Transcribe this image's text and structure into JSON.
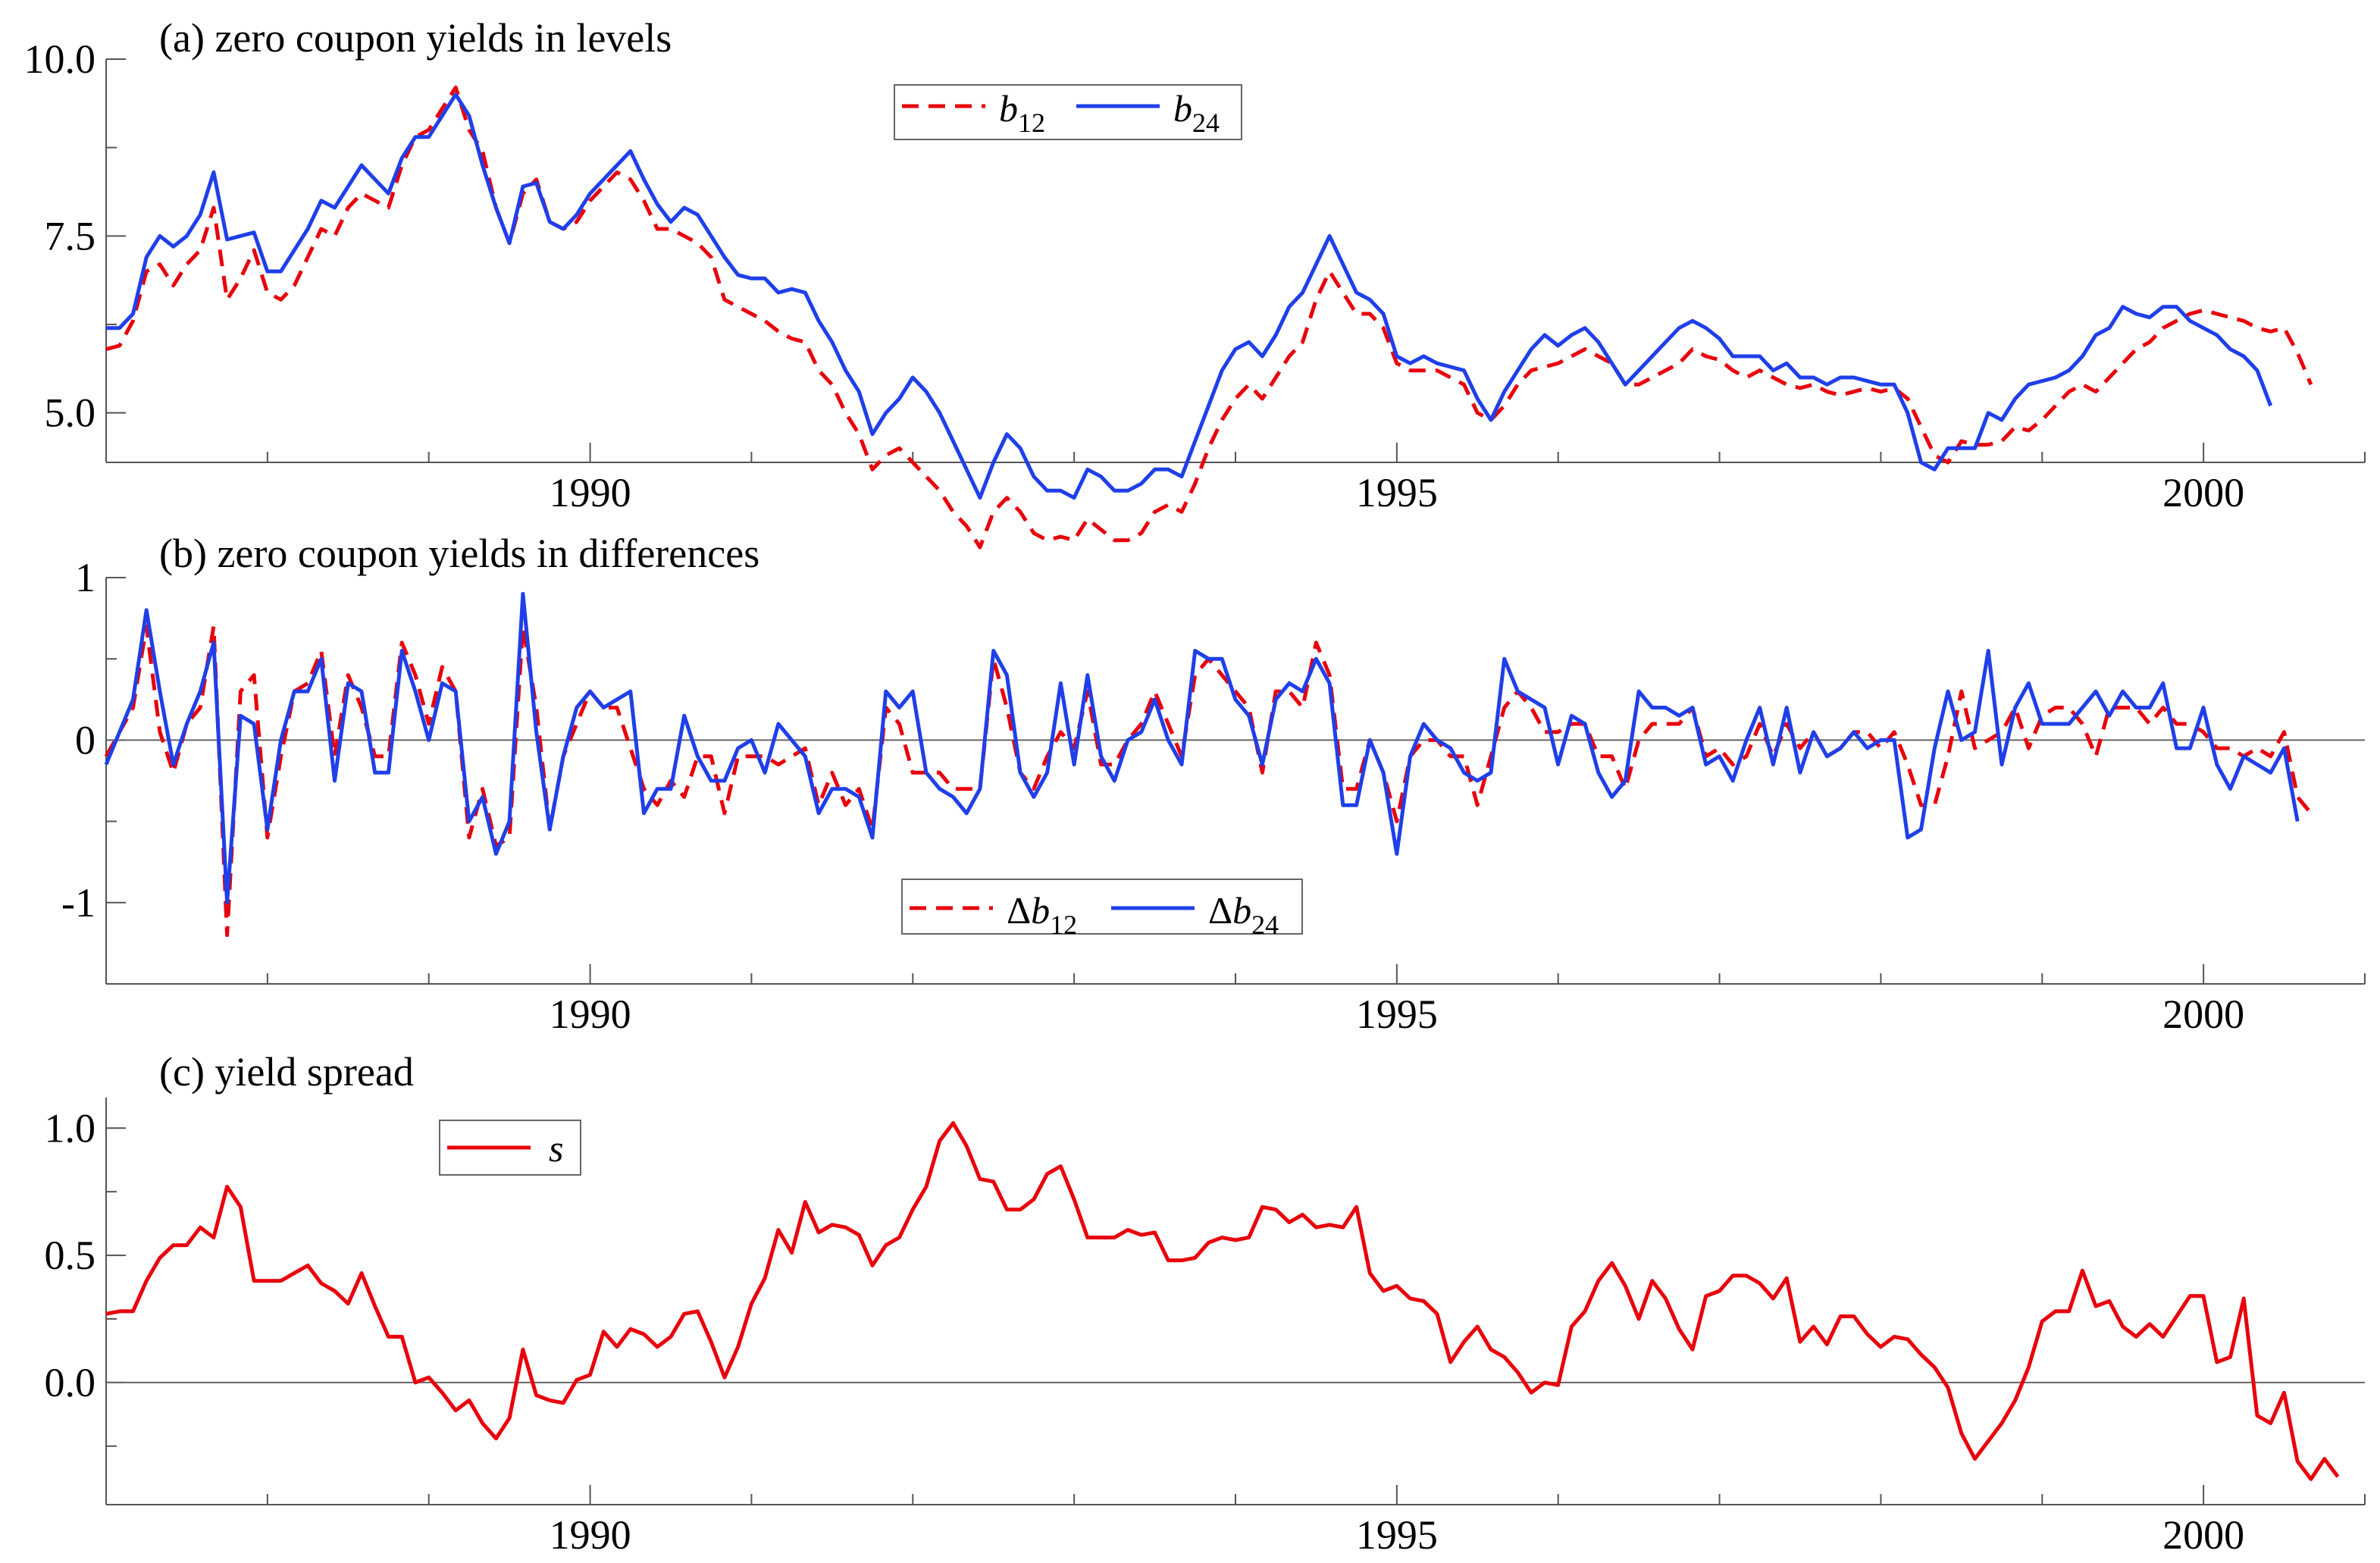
{
  "chart_data": [
    {
      "type": "line",
      "panel": "a",
      "title": "(a) zero coupon yields in levels",
      "x_start": 1987.0,
      "x_step": 0.08333,
      "xlim": [
        1987.0,
        2001.0
      ],
      "ylim": [
        4.3,
        10.0
      ],
      "yticks": [
        5.0,
        7.5,
        10.0
      ],
      "ytick_labels": [
        "5.0",
        "7.5",
        "10.0"
      ],
      "xticks": [
        1990,
        1995,
        2000
      ],
      "xtick_labels": [
        "1990",
        "1995",
        "2000"
      ],
      "zero_line": false,
      "legend_position": "top-center",
      "series": [
        {
          "name": "b12",
          "legend_main": "b",
          "legend_sub": "12",
          "color": "#e8000b",
          "dash": "dashed",
          "values": [
            5.9,
            5.95,
            6.3,
            7.0,
            7.1,
            6.8,
            7.1,
            7.3,
            7.9,
            6.6,
            6.9,
            7.3,
            6.7,
            6.6,
            6.8,
            7.2,
            7.6,
            7.5,
            7.9,
            8.1,
            8.0,
            7.9,
            8.5,
            8.9,
            9.0,
            9.3,
            9.6,
            9.0,
            8.7,
            7.9,
            7.4,
            8.1,
            8.3,
            7.7,
            7.6,
            7.7,
            8.0,
            8.2,
            8.4,
            8.3,
            8.0,
            7.6,
            7.6,
            7.5,
            7.4,
            7.2,
            6.6,
            6.5,
            6.4,
            6.3,
            6.15,
            6.05,
            6.0,
            5.6,
            5.4,
            5.0,
            4.7,
            4.2,
            4.4,
            4.5,
            4.3,
            4.1,
            3.9,
            3.6,
            3.4,
            3.1,
            3.6,
            3.8,
            3.6,
            3.3,
            3.2,
            3.25,
            3.2,
            3.5,
            3.35,
            3.2,
            3.2,
            3.3,
            3.6,
            3.7,
            3.6,
            4.0,
            4.5,
            4.9,
            5.2,
            5.4,
            5.2,
            5.5,
            5.8,
            6.0,
            6.6,
            7.0,
            6.7,
            6.4,
            6.4,
            6.2,
            5.7,
            5.6,
            5.6,
            5.6,
            5.5,
            5.4,
            5.0,
            4.9,
            5.1,
            5.4,
            5.6,
            5.65,
            5.7,
            5.8,
            5.9,
            5.8,
            5.7,
            5.4,
            5.4,
            5.5,
            5.6,
            5.7,
            5.9,
            5.8,
            5.75,
            5.6,
            5.5,
            5.6,
            5.5,
            5.4,
            5.35,
            5.4,
            5.3,
            5.25,
            5.3,
            5.35,
            5.3,
            5.35,
            5.2,
            4.8,
            4.4,
            4.3,
            4.6,
            4.55,
            4.55,
            4.6,
            4.8,
            4.75,
            4.9,
            5.1,
            5.3,
            5.4,
            5.3,
            5.5,
            5.7,
            5.9,
            6.0,
            6.2,
            6.3,
            6.4,
            6.45,
            6.4,
            6.35,
            6.3,
            6.2,
            6.15,
            6.2,
            5.85,
            5.4
          ]
        },
        {
          "name": "b24",
          "legend_main": "b",
          "legend_sub": "24",
          "color": "#1f3fe8",
          "dash": "solid",
          "values": [
            6.2,
            6.2,
            6.4,
            7.2,
            7.5,
            7.35,
            7.5,
            7.8,
            8.4,
            7.45,
            7.5,
            7.55,
            7.0,
            7.0,
            7.3,
            7.6,
            8.0,
            7.9,
            8.2,
            8.5,
            8.3,
            8.1,
            8.6,
            8.9,
            8.9,
            9.2,
            9.5,
            9.2,
            8.5,
            7.9,
            7.4,
            8.2,
            8.25,
            7.7,
            7.6,
            7.8,
            8.1,
            8.3,
            8.5,
            8.7,
            8.3,
            7.95,
            7.7,
            7.9,
            7.8,
            7.5,
            7.2,
            6.95,
            6.9,
            6.9,
            6.7,
            6.75,
            6.7,
            6.3,
            6.0,
            5.6,
            5.3,
            4.7,
            5.0,
            5.2,
            5.5,
            5.3,
            5.0,
            4.6,
            4.2,
            3.8,
            4.3,
            4.7,
            4.5,
            4.1,
            3.9,
            3.9,
            3.8,
            4.2,
            4.1,
            3.9,
            3.9,
            4.0,
            4.2,
            4.2,
            4.1,
            4.6,
            5.1,
            5.6,
            5.9,
            6.0,
            5.8,
            6.1,
            6.5,
            6.7,
            7.1,
            7.5,
            7.1,
            6.7,
            6.6,
            6.4,
            5.8,
            5.7,
            5.8,
            5.7,
            5.65,
            5.6,
            5.2,
            4.9,
            5.3,
            5.6,
            5.9,
            6.1,
            5.95,
            6.1,
            6.2,
            6.0,
            5.7,
            5.4,
            5.6,
            5.8,
            6.0,
            6.2,
            6.3,
            6.2,
            6.05,
            5.8,
            5.8,
            5.8,
            5.6,
            5.7,
            5.5,
            5.5,
            5.4,
            5.5,
            5.5,
            5.45,
            5.4,
            5.4,
            5.0,
            4.3,
            4.2,
            4.5,
            4.5,
            4.5,
            5.0,
            4.9,
            5.2,
            5.4,
            5.45,
            5.5,
            5.6,
            5.8,
            6.1,
            6.2,
            6.5,
            6.4,
            6.35,
            6.5,
            6.5,
            6.3,
            6.2,
            6.1,
            5.9,
            5.8,
            5.6,
            5.1
          ]
        }
      ]
    },
    {
      "type": "line",
      "panel": "b",
      "title": "(b) zero coupon yields in differences",
      "x_start": 1987.0,
      "x_step": 0.08333,
      "xlim": [
        1987.0,
        2001.0
      ],
      "ylim": [
        -1.5,
        1.0
      ],
      "yticks": [
        -1,
        0,
        1
      ],
      "ytick_labels": [
        "-1",
        "0",
        "1"
      ],
      "xticks": [
        1990,
        1995,
        2000
      ],
      "xtick_labels": [
        "1990",
        "1995",
        "2000"
      ],
      "zero_line": true,
      "legend_position": "lower-center",
      "series": [
        {
          "name": "Δb12",
          "legend_prefix": "Δ",
          "legend_main": "b",
          "legend_sub": "12",
          "color": "#e8000b",
          "dash": "dashed",
          "values": [
            -0.1,
            0.05,
            0.2,
            0.7,
            0.05,
            -0.2,
            0.1,
            0.2,
            0.7,
            -1.2,
            0.3,
            0.4,
            -0.6,
            -0.1,
            0.3,
            0.35,
            0.55,
            -0.1,
            0.4,
            0.2,
            -0.1,
            -0.1,
            0.6,
            0.4,
            0.1,
            0.45,
            0.3,
            -0.6,
            -0.3,
            -0.65,
            -0.6,
            0.7,
            0.2,
            -0.55,
            -0.1,
            0.1,
            0.3,
            0.2,
            0.2,
            -0.05,
            -0.3,
            -0.4,
            -0.25,
            -0.35,
            -0.1,
            -0.1,
            -0.45,
            -0.1,
            -0.1,
            -0.1,
            -0.15,
            -0.1,
            -0.05,
            -0.4,
            -0.2,
            -0.4,
            -0.3,
            -0.55,
            0.2,
            0.1,
            -0.2,
            -0.2,
            -0.2,
            -0.3,
            -0.3,
            -0.3,
            0.5,
            0.2,
            -0.2,
            -0.3,
            -0.1,
            0.05,
            -0.05,
            0.3,
            -0.15,
            -0.15,
            0.0,
            0.1,
            0.3,
            0.1,
            -0.1,
            0.4,
            0.5,
            0.4,
            0.3,
            0.2,
            -0.2,
            0.3,
            0.3,
            0.2,
            0.6,
            0.4,
            -0.3,
            -0.3,
            0.0,
            -0.2,
            -0.5,
            -0.1,
            0.0,
            0.0,
            -0.1,
            -0.1,
            -0.4,
            -0.1,
            0.2,
            0.3,
            0.2,
            0.05,
            0.05,
            0.1,
            0.1,
            -0.1,
            -0.1,
            -0.3,
            0.0,
            0.1,
            0.1,
            0.1,
            0.2,
            -0.1,
            -0.05,
            -0.15,
            -0.1,
            0.1,
            -0.1,
            0.1,
            -0.05,
            0.05,
            -0.1,
            -0.05,
            0.05,
            0.05,
            -0.05,
            0.05,
            -0.15,
            -0.4,
            -0.4,
            -0.1,
            0.3,
            -0.05,
            0.0,
            0.05,
            0.2,
            -0.05,
            0.15,
            0.2,
            0.2,
            0.1,
            -0.1,
            0.2,
            0.2,
            0.2,
            0.1,
            0.2,
            0.1,
            0.1,
            0.05,
            -0.05,
            -0.05,
            -0.1,
            -0.05,
            -0.1,
            0.05,
            -0.35,
            -0.45
          ]
        },
        {
          "name": "Δb24",
          "legend_prefix": "Δ",
          "legend_main": "b",
          "legend_sub": "24",
          "color": "#1f3fe8",
          "dash": "solid",
          "values": [
            -0.15,
            0.05,
            0.25,
            0.8,
            0.3,
            -0.15,
            0.1,
            0.3,
            0.6,
            -1.0,
            0.15,
            0.1,
            -0.55,
            0.0,
            0.3,
            0.3,
            0.5,
            -0.25,
            0.35,
            0.3,
            -0.2,
            -0.2,
            0.55,
            0.3,
            0.0,
            0.35,
            0.3,
            -0.5,
            -0.35,
            -0.7,
            -0.5,
            0.9,
            0.05,
            -0.55,
            -0.1,
            0.2,
            0.3,
            0.2,
            0.25,
            0.3,
            -0.45,
            -0.3,
            -0.3,
            0.15,
            -0.1,
            -0.25,
            -0.25,
            -0.05,
            0.0,
            -0.2,
            0.1,
            0.0,
            -0.1,
            -0.45,
            -0.3,
            -0.3,
            -0.35,
            -0.6,
            0.3,
            0.2,
            0.3,
            -0.2,
            -0.3,
            -0.35,
            -0.45,
            -0.3,
            0.55,
            0.4,
            -0.2,
            -0.35,
            -0.2,
            0.35,
            -0.15,
            0.4,
            -0.1,
            -0.25,
            0.0,
            0.05,
            0.25,
            0.0,
            -0.15,
            0.55,
            0.5,
            0.5,
            0.25,
            0.15,
            -0.15,
            0.25,
            0.35,
            0.3,
            0.5,
            0.35,
            -0.4,
            -0.4,
            0.0,
            -0.2,
            -0.7,
            -0.1,
            0.1,
            0.0,
            -0.05,
            -0.2,
            -0.25,
            -0.2,
            0.5,
            0.3,
            0.25,
            0.2,
            -0.15,
            0.15,
            0.1,
            -0.2,
            -0.35,
            -0.25,
            0.3,
            0.2,
            0.2,
            0.15,
            0.2,
            -0.15,
            -0.1,
            -0.25,
            0.0,
            0.2,
            -0.15,
            0.2,
            -0.2,
            0.05,
            -0.1,
            -0.05,
            0.05,
            -0.05,
            0.0,
            0.0,
            -0.6,
            -0.55,
            -0.05,
            0.3,
            0.0,
            0.05,
            0.55,
            -0.15,
            0.2,
            0.35,
            0.1,
            0.1,
            0.1,
            0.2,
            0.3,
            0.15,
            0.3,
            0.2,
            0.2,
            0.35,
            -0.05,
            -0.05,
            0.2,
            -0.15,
            -0.3,
            -0.1,
            -0.15,
            -0.2,
            -0.05,
            -0.5
          ]
        }
      ]
    },
    {
      "type": "line",
      "panel": "c",
      "title": "(c) yield spread",
      "x_start": 1987.0,
      "x_step": 0.08333,
      "xlim": [
        1987.0,
        2001.0
      ],
      "ylim": [
        -0.48,
        1.12
      ],
      "yticks": [
        0.0,
        0.5,
        1.0
      ],
      "ytick_labels": [
        "0.0",
        "0.5",
        "1.0"
      ],
      "xticks": [
        1990,
        1995,
        2000
      ],
      "xtick_labels": [
        "1990",
        "1995",
        "2000"
      ],
      "zero_line": true,
      "legend_position": "top-left",
      "series": [
        {
          "name": "s",
          "legend_main": "s",
          "legend_sub": "",
          "color": "#e8000b",
          "dash": "solid",
          "values": [
            0.27,
            0.28,
            0.28,
            0.4,
            0.49,
            0.54,
            0.54,
            0.61,
            0.57,
            0.77,
            0.69,
            0.4,
            0.4,
            0.4,
            0.43,
            0.46,
            0.39,
            0.36,
            0.31,
            0.43,
            0.3,
            0.18,
            0.18,
            0.0,
            0.02,
            -0.04,
            -0.11,
            -0.07,
            -0.16,
            -0.22,
            -0.14,
            0.13,
            -0.05,
            -0.07,
            -0.08,
            0.01,
            0.03,
            0.2,
            0.14,
            0.21,
            0.19,
            0.14,
            0.18,
            0.27,
            0.28,
            0.16,
            0.02,
            0.14,
            0.31,
            0.41,
            0.6,
            0.51,
            0.71,
            0.59,
            0.62,
            0.61,
            0.58,
            0.46,
            0.54,
            0.57,
            0.68,
            0.77,
            0.95,
            1.02,
            0.93,
            0.8,
            0.79,
            0.68,
            0.68,
            0.72,
            0.82,
            0.85,
            0.72,
            0.57,
            0.57,
            0.57,
            0.6,
            0.58,
            0.59,
            0.48,
            0.48,
            0.49,
            0.55,
            0.57,
            0.56,
            0.57,
            0.69,
            0.68,
            0.63,
            0.66,
            0.61,
            0.62,
            0.61,
            0.69,
            0.43,
            0.36,
            0.38,
            0.33,
            0.32,
            0.27,
            0.08,
            0.16,
            0.22,
            0.13,
            0.1,
            0.04,
            -0.04,
            0.0,
            -0.01,
            0.22,
            0.28,
            0.4,
            0.47,
            0.38,
            0.25,
            0.4,
            0.33,
            0.21,
            0.13,
            0.34,
            0.36,
            0.42,
            0.42,
            0.39,
            0.33,
            0.41,
            0.16,
            0.22,
            0.15,
            0.26,
            0.26,
            0.19,
            0.14,
            0.18,
            0.17,
            0.11,
            0.06,
            -0.02,
            -0.2,
            -0.3,
            -0.23,
            -0.16,
            -0.07,
            0.06,
            0.24,
            0.28,
            0.28,
            0.44,
            0.3,
            0.32,
            0.22,
            0.18,
            0.23,
            0.18,
            0.26,
            0.34,
            0.34,
            0.08,
            0.1,
            0.33,
            -0.13,
            -0.16,
            -0.04,
            -0.31,
            -0.38,
            -0.3,
            -0.37
          ]
        }
      ]
    }
  ]
}
